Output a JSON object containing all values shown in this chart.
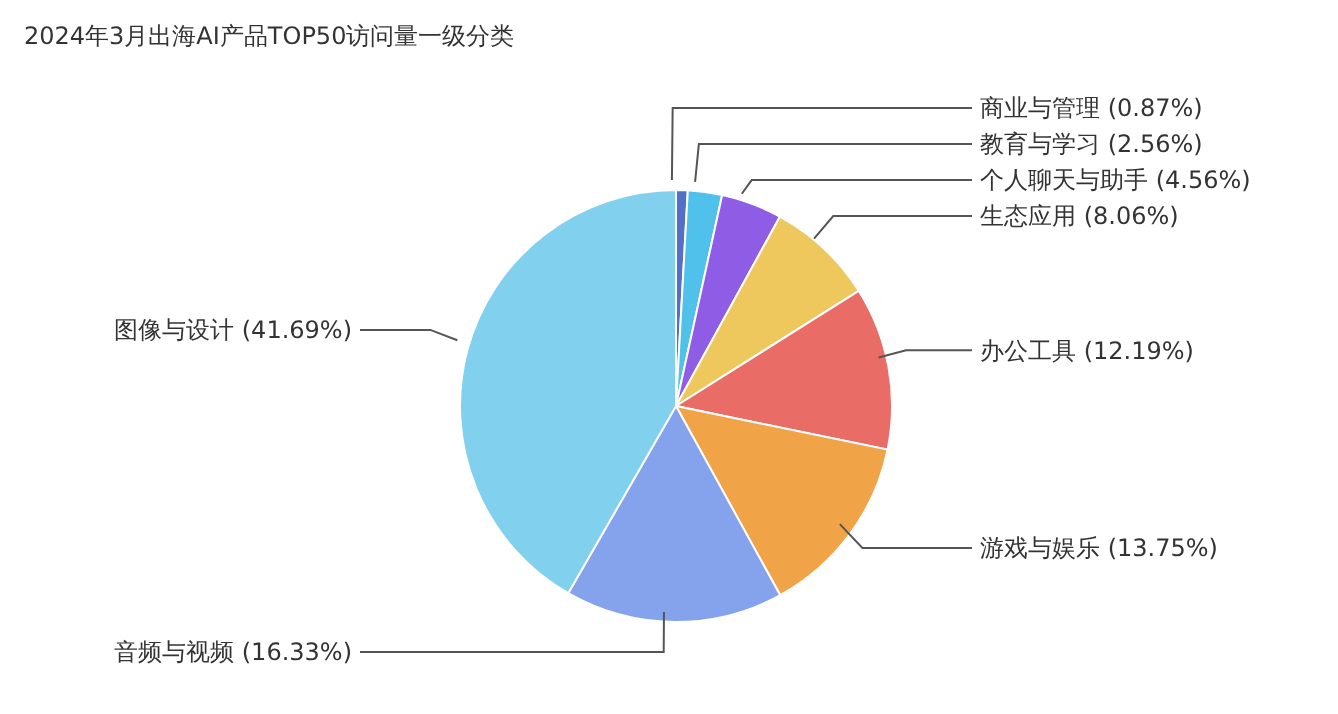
{
  "chart_data": {
    "type": "pie",
    "title": "2024年3月出海AI产品TOP50访问量一级分类",
    "categories": [
      "商业与管理",
      "教育与学习",
      "个人聊天与助手",
      "生态应用",
      "办公工具",
      "游戏与娱乐",
      "音频与视频",
      "图像与设计"
    ],
    "values": [
      0.87,
      2.56,
      4.56,
      8.06,
      12.19,
      13.75,
      16.33,
      41.69
    ],
    "colors": [
      "#5470c6",
      "#4fc1ea",
      "#8f5ce6",
      "#eec85c",
      "#ea6c67",
      "#f1a347",
      "#84a3ec",
      "#80d0ee"
    ],
    "value_labels": [
      "(0.87%)",
      "(2.56%)",
      "(4.56%)",
      "(8.06%)",
      "(12.19%)",
      "(13.75%)",
      "(16.33%)",
      "(41.69%)"
    ],
    "legend": false
  }
}
